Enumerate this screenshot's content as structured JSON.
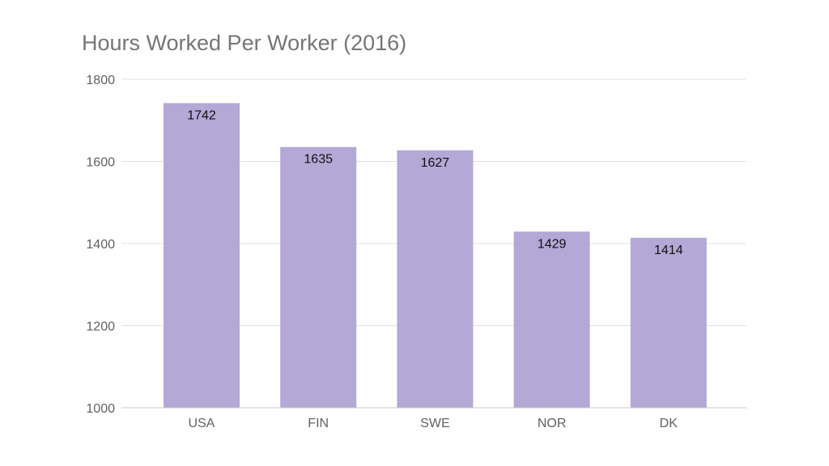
{
  "chart_data": {
    "type": "bar",
    "title": "Hours Worked Per Worker (2016)",
    "xlabel": "",
    "ylabel": "",
    "categories": [
      "USA",
      "FIN",
      "SWE",
      "NOR",
      "DK"
    ],
    "values": [
      1742,
      1635,
      1627,
      1429,
      1414
    ],
    "data_labels": [
      "1742",
      "1635",
      "1627",
      "1429",
      "1414"
    ],
    "ylim": [
      1000,
      1800
    ],
    "yticks": [
      1000,
      1200,
      1400,
      1600,
      1800
    ],
    "ytick_labels": [
      "1000",
      "1200",
      "1400",
      "1600",
      "1800"
    ],
    "grid": true,
    "legend": "none",
    "bar_color": "#b3a8d6"
  }
}
